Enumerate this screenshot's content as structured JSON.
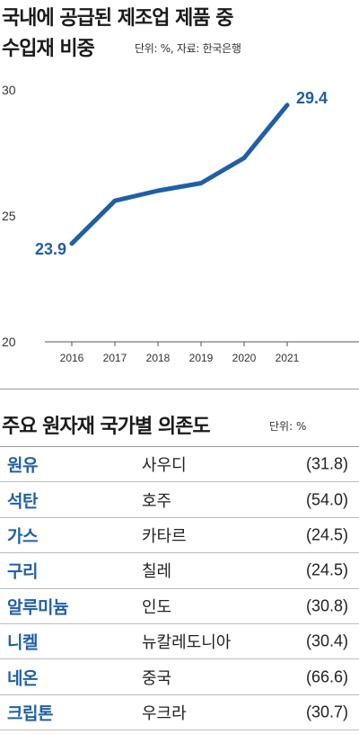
{
  "title_line1": "국내에 공급된 제조업 제품 중",
  "title_line2": "수입재 비중",
  "source": "단위: %, 자료: 한국은행",
  "chart_data": {
    "type": "line",
    "x": [
      "2016",
      "2017",
      "2018",
      "2019",
      "2020",
      "2021"
    ],
    "series": [
      {
        "values": [
          23.9,
          25.6,
          26.0,
          26.3,
          27.3,
          29.4
        ]
      }
    ],
    "ylim": [
      20,
      30
    ],
    "yticks": [
      "30",
      "25",
      "20"
    ],
    "annotations": [
      "23.9",
      "29.4"
    ],
    "line_color": "#1f5fa6",
    "grid": false
  },
  "table": {
    "title": "주요 원자재 국가별 의존도",
    "unit": "단위: %",
    "rows": [
      {
        "material": "원유",
        "country": "사우디",
        "value": "(31.8)"
      },
      {
        "material": "석탄",
        "country": "호주",
        "value": "(54.0)"
      },
      {
        "material": "가스",
        "country": "카타르",
        "value": "(24.5)"
      },
      {
        "material": "구리",
        "country": "칠레",
        "value": "(24.5)"
      },
      {
        "material": "알루미늄",
        "country": "인도",
        "value": "(30.8)"
      },
      {
        "material": "니켈",
        "country": "뉴칼레도니아",
        "value": "(30.4)"
      },
      {
        "material": "네온",
        "country": "중국",
        "value": "(66.6)"
      },
      {
        "material": "크립톤",
        "country": "우크라",
        "value": "(30.7)"
      }
    ]
  }
}
